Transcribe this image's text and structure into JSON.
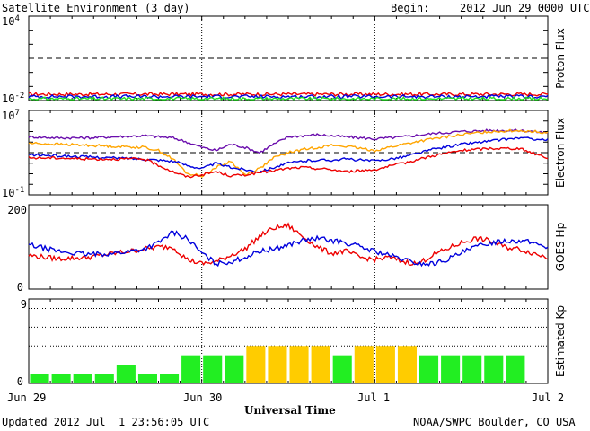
{
  "header": {
    "title": "Satellite Environment (3 day)",
    "begin_label": "Begin:",
    "begin_value": "2012 Jun 29 0000 UTC"
  },
  "footer": {
    "updated": "Updated 2012 Jul  1 23:56:05 UTC",
    "credit": "NOAA/SWPC Boulder, CO USA"
  },
  "x_axis": {
    "title": "Universal Time",
    "ticks": [
      "Jun 29",
      "Jun 30",
      "Jul 1",
      "Jul 2"
    ]
  },
  "colors": {
    "red": "#ee0000",
    "blue": "#0000dd",
    "green": "#22dd22",
    "purple": "#6a0dad",
    "orange": "#ffa500",
    "kp_green": "#22ee22",
    "kp_yellow": "#ffcc00"
  },
  "chart_data": [
    {
      "type": "line",
      "ylabel": "Proton Flux",
      "scale": "log",
      "ylim_exp": [
        -2,
        4
      ],
      "y_tick_labels": [
        {
          "base": "10",
          "exp": "4"
        },
        {
          "base": "10",
          "exp": "-2"
        }
      ],
      "threshold_exp": 1,
      "series": [
        {
          "color": "red",
          "x": [
            0,
            72
          ],
          "y_exp": [
            -1.55,
            -1.55
          ]
        },
        {
          "color": "blue",
          "x": [
            0,
            72
          ],
          "y_exp": [
            -1.72,
            -1.72
          ]
        },
        {
          "color": "green",
          "x": [
            0,
            72
          ],
          "y_exp": [
            -1.88,
            -1.88
          ]
        }
      ]
    },
    {
      "type": "line",
      "ylabel": "Electron Flux",
      "scale": "log",
      "ylim_exp": [
        -1,
        7
      ],
      "y_tick_labels": [
        {
          "base": "10",
          "exp": "7"
        },
        {
          "base": "10",
          "exp": "-1"
        }
      ],
      "threshold_exp": 3,
      "series": [
        {
          "color": "purple",
          "x": [
            0,
            4,
            8,
            12,
            16,
            20,
            22,
            24,
            26,
            28,
            30,
            32,
            34,
            36,
            38,
            40,
            42,
            44,
            48,
            52,
            56,
            60,
            64,
            68,
            72
          ],
          "y_exp": [
            4.5,
            4.4,
            4.4,
            4.5,
            4.6,
            4.4,
            4.0,
            3.5,
            3.2,
            3.8,
            3.5,
            3.0,
            3.8,
            4.5,
            4.6,
            4.7,
            4.6,
            4.5,
            4.3,
            4.5,
            4.8,
            5.0,
            5.1,
            5.1,
            4.9
          ]
        },
        {
          "color": "orange",
          "x": [
            0,
            4,
            8,
            12,
            16,
            18,
            20,
            22,
            24,
            26,
            28,
            30,
            32,
            34,
            36,
            38,
            40,
            42,
            44,
            46,
            48,
            52,
            56,
            60,
            64,
            68,
            72
          ],
          "y_exp": [
            3.9,
            3.8,
            3.7,
            3.6,
            3.5,
            3.2,
            2.4,
            1.0,
            0.8,
            1.6,
            2.2,
            0.9,
            1.5,
            2.5,
            3.0,
            3.3,
            3.5,
            3.7,
            3.6,
            3.4,
            3.2,
            3.8,
            4.3,
            4.7,
            5.0,
            5.1,
            4.9
          ]
        },
        {
          "color": "blue",
          "x": [
            0,
            4,
            8,
            12,
            16,
            20,
            22,
            24,
            26,
            28,
            30,
            32,
            34,
            36,
            38,
            40,
            42,
            44,
            48,
            52,
            56,
            60,
            64,
            68,
            72
          ],
          "y_exp": [
            2.8,
            2.7,
            2.6,
            2.5,
            2.4,
            2.2,
            1.8,
            1.5,
            2.0,
            1.6,
            1.4,
            1.2,
            1.6,
            2.0,
            2.2,
            2.3,
            2.3,
            2.4,
            2.2,
            2.6,
            3.3,
            3.8,
            4.1,
            4.4,
            4.2
          ]
        },
        {
          "color": "red",
          "x": [
            0,
            4,
            8,
            12,
            16,
            20,
            22,
            24,
            26,
            28,
            30,
            32,
            34,
            36,
            38,
            40,
            42,
            44,
            48,
            52,
            56,
            60,
            64,
            68,
            72
          ],
          "y_exp": [
            2.5,
            2.5,
            2.4,
            2.4,
            2.4,
            1.2,
            0.7,
            0.9,
            1.2,
            0.8,
            0.9,
            1.1,
            1.3,
            1.5,
            1.6,
            1.5,
            1.4,
            1.2,
            1.4,
            2.0,
            2.7,
            3.2,
            3.4,
            3.4,
            2.5
          ]
        }
      ]
    },
    {
      "type": "line",
      "ylabel": "GOES Hp",
      "ylim": [
        0,
        200
      ],
      "y_tick_labels": [
        "200",
        "0"
      ],
      "series": [
        {
          "color": "red",
          "x": [
            0,
            4,
            8,
            12,
            16,
            18,
            20,
            22,
            24,
            26,
            28,
            30,
            32,
            34,
            36,
            38,
            40,
            42,
            44,
            46,
            48,
            50,
            52,
            54,
            56,
            58,
            60,
            62,
            64,
            66,
            68,
            70,
            72
          ],
          "y": [
            80,
            72,
            75,
            85,
            95,
            100,
            100,
            70,
            60,
            65,
            80,
            95,
            125,
            145,
            150,
            125,
            100,
            85,
            90,
            75,
            70,
            75,
            65,
            60,
            80,
            95,
            110,
            120,
            115,
            100,
            95,
            85,
            75
          ]
        },
        {
          "color": "blue",
          "x": [
            0,
            4,
            8,
            12,
            16,
            18,
            20,
            22,
            24,
            26,
            28,
            30,
            32,
            34,
            36,
            38,
            40,
            42,
            44,
            46,
            48,
            50,
            52,
            54,
            56,
            58,
            60,
            62,
            64,
            66,
            68,
            70,
            72
          ],
          "y": [
            105,
            90,
            82,
            85,
            95,
            110,
            135,
            120,
            85,
            60,
            65,
            75,
            90,
            95,
            105,
            115,
            120,
            115,
            110,
            100,
            90,
            80,
            70,
            60,
            60,
            70,
            85,
            100,
            110,
            115,
            115,
            110,
            100
          ]
        }
      ]
    },
    {
      "type": "bar",
      "ylabel": "Estimated Kp",
      "ylim": [
        0,
        9
      ],
      "y_tick_labels": [
        "9",
        "0"
      ],
      "dotted_levels": [
        4,
        6,
        8
      ],
      "bin_hours": 3,
      "values": [
        1,
        1,
        1,
        1,
        2,
        1,
        1,
        3,
        3,
        3,
        4,
        4,
        4,
        4,
        3,
        4,
        4,
        4,
        3,
        3,
        3,
        3,
        3,
        0
      ],
      "colors": [
        "kp_green",
        "kp_green",
        "kp_green",
        "kp_green",
        "kp_green",
        "kp_green",
        "kp_green",
        "kp_green",
        "kp_green",
        "kp_green",
        "kp_yellow",
        "kp_yellow",
        "kp_yellow",
        "kp_yellow",
        "kp_green",
        "kp_yellow",
        "kp_yellow",
        "kp_yellow",
        "kp_green",
        "kp_green",
        "kp_green",
        "kp_green",
        "kp_green",
        "kp_green"
      ]
    }
  ]
}
